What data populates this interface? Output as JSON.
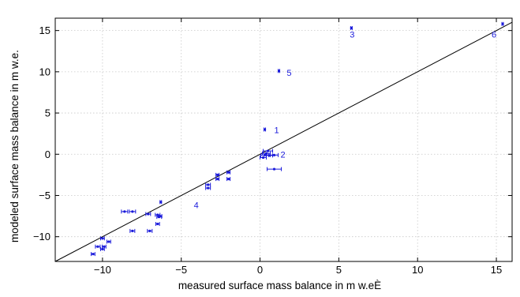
{
  "chart_data": {
    "type": "scatter",
    "title": "",
    "xlabel": "measured surface mass balance in m w.eÈ",
    "ylabel": "modeled surface mass balance in m w.e.",
    "xlim": [
      -13,
      16
    ],
    "ylim": [
      -13,
      16.5
    ],
    "x_ticks": [
      -10,
      -5,
      0,
      5,
      10,
      15
    ],
    "x_tick_labels": [
      "−10",
      "−5",
      "0",
      "5",
      "10",
      "15"
    ],
    "y_ticks": [
      -10,
      -5,
      0,
      5,
      10,
      15
    ],
    "y_tick_labels": [
      "−10",
      "−5",
      "0",
      "5",
      "10",
      "15"
    ],
    "grid": true,
    "point_color": "#1a1adb",
    "reference_line": {
      "x": [
        -13,
        16
      ],
      "y": [
        -13,
        16
      ]
    },
    "points": [
      {
        "x": -10.6,
        "y": -12.1,
        "xerr": 0.12
      },
      {
        "x": -10.3,
        "y": -11.2,
        "xerr": 0.15
      },
      {
        "x": -10.0,
        "y": -11.5,
        "xerr": 0.12
      },
      {
        "x": -9.9,
        "y": -11.2,
        "xerr": 0.12
      },
      {
        "x": -10.0,
        "y": -10.2,
        "xerr": 0.12
      },
      {
        "x": -9.6,
        "y": -10.6,
        "xerr": 0.12
      },
      {
        "x": -8.6,
        "y": -6.95,
        "xerr": 0.2
      },
      {
        "x": -8.1,
        "y": -6.95,
        "xerr": 0.2
      },
      {
        "x": -8.1,
        "y": -9.3,
        "xerr": 0.15
      },
      {
        "x": -7.1,
        "y": -7.25,
        "xerr": 0.15
      },
      {
        "x": -7.0,
        "y": -9.3,
        "xerr": 0.15
      },
      {
        "x": -6.5,
        "y": -7.35,
        "xerr": 0.15
      },
      {
        "x": -6.4,
        "y": -7.6,
        "xerr": 0.15
      },
      {
        "x": -6.35,
        "y": -7.5,
        "xerr": 0.12
      },
      {
        "x": -6.5,
        "y": -8.45,
        "xerr": 0.12
      },
      {
        "x": -6.3,
        "y": -5.8,
        "xerr": 0.05
      },
      {
        "x": -3.3,
        "y": -3.7,
        "xerr": 0.15
      },
      {
        "x": -3.3,
        "y": -4.1,
        "xerr": 0.15
      },
      {
        "x": -2.7,
        "y": -3.0,
        "xerr": 0.1
      },
      {
        "x": -2.7,
        "y": -2.5,
        "xerr": 0.1
      },
      {
        "x": -2.0,
        "y": -2.2,
        "xerr": 0.1
      },
      {
        "x": -2.0,
        "y": -3.0,
        "xerr": 0.1
      },
      {
        "x": 0.3,
        "y": 3.0,
        "xerr": 0.05
      },
      {
        "x": 0.5,
        "y": 0.4,
        "xerr": 0.3
      },
      {
        "x": 0.4,
        "y": 0.1,
        "xerr": 0.25
      },
      {
        "x": 0.3,
        "y": -0.1,
        "xerr": 0.25
      },
      {
        "x": 0.6,
        "y": -0.15,
        "xerr": 0.2
      },
      {
        "x": 0.2,
        "y": -0.4,
        "xerr": 0.2
      },
      {
        "x": 0.9,
        "y": -0.1,
        "xerr": 0.25
      },
      {
        "x": 0.9,
        "y": -1.8,
        "xerr": 0.45
      },
      {
        "x": 1.2,
        "y": 10.1,
        "xerr": 0.05
      },
      {
        "x": 5.8,
        "y": 15.3,
        "xerr": 0.05
      },
      {
        "x": 15.4,
        "y": 15.8,
        "xerr": 0.05
      }
    ],
    "annotations": [
      {
        "text": "1",
        "x": 1.05,
        "y": 2.55
      },
      {
        "text": "2",
        "x": 1.45,
        "y": -0.4
      },
      {
        "text": "3",
        "x": 5.85,
        "y": 14.15
      },
      {
        "text": "4",
        "x": -4.05,
        "y": -6.55
      },
      {
        "text": "5",
        "x": 1.85,
        "y": 9.5
      },
      {
        "text": "6",
        "x": 14.85,
        "y": 14.15
      }
    ]
  }
}
